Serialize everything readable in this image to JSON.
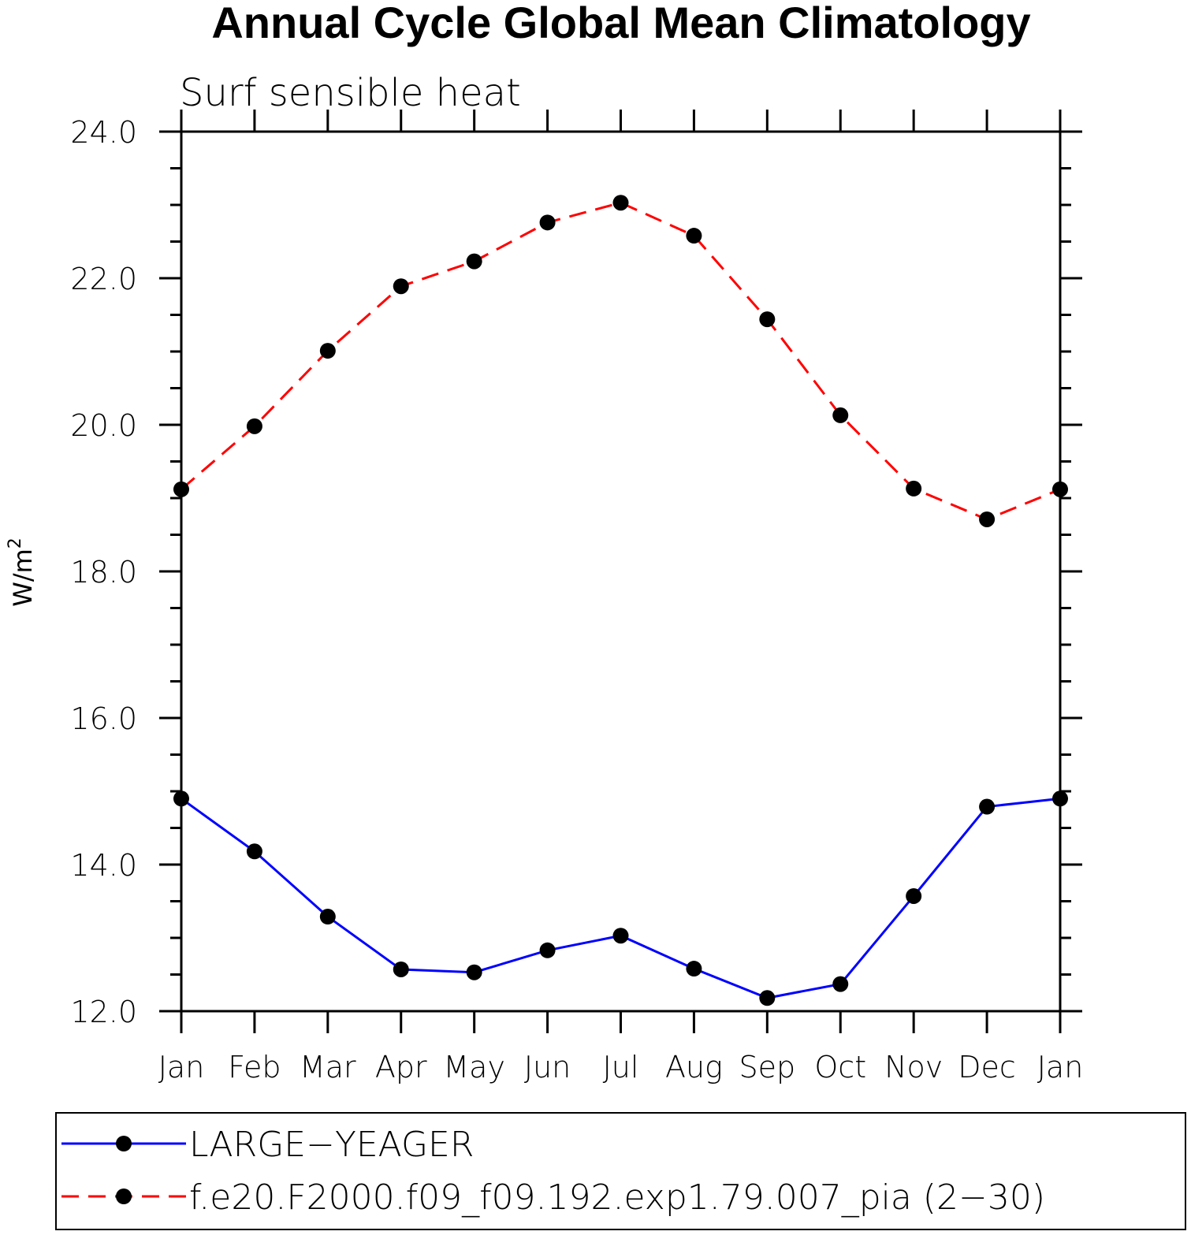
{
  "chart_data": {
    "type": "line",
    "title": "Annual Cycle Global Mean Climatology",
    "subtitle": "Surf sensible heat",
    "ylabel_base": "W/m",
    "ylabel_sup": "2",
    "categories": [
      "Jan",
      "Feb",
      "Mar",
      "Apr",
      "May",
      "Jun",
      "Jul",
      "Aug",
      "Sep",
      "Oct",
      "Nov",
      "Dec",
      "Jan"
    ],
    "ylim": [
      12.0,
      24.0
    ],
    "yticks": [
      "12.0",
      "14.0",
      "16.0",
      "18.0",
      "20.0",
      "22.0",
      "24.0"
    ],
    "grid": false,
    "legend_position": "bottom",
    "series": [
      {
        "name": "LARGE−YEAGER",
        "color": "#0000ff",
        "style": "solid",
        "marker": "filled-circle",
        "values": [
          14.9,
          14.18,
          13.29,
          12.57,
          12.53,
          12.83,
          13.03,
          12.58,
          12.18,
          12.37,
          13.57,
          14.79,
          14.9
        ]
      },
      {
        "name": "f.e20.F2000.f09_f09.192.exp1.79.007_pia (2−30)",
        "color": "#ff0000",
        "style": "dashed",
        "marker": "filled-circle",
        "values": [
          19.12,
          19.98,
          21.01,
          21.89,
          22.23,
          22.76,
          23.03,
          22.58,
          21.44,
          20.13,
          19.13,
          18.71,
          19.12
        ]
      }
    ]
  }
}
